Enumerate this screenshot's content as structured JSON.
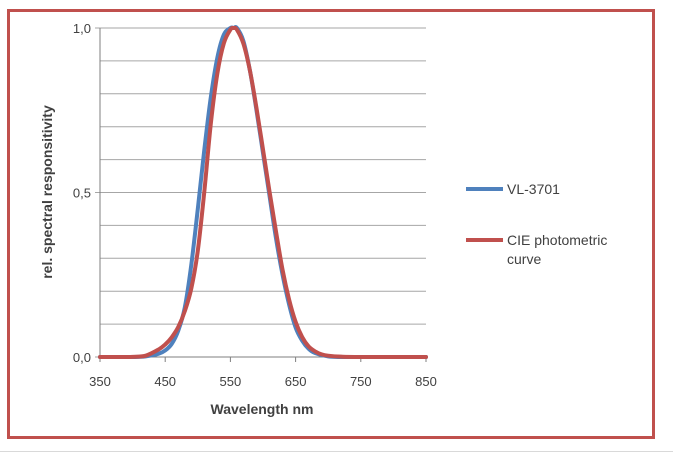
{
  "chart_data": {
    "type": "line",
    "title": "",
    "xlabel": "Wavelength nm",
    "ylabel": "rel. spectral responsitivity",
    "xlim": [
      350,
      850
    ],
    "ylim": [
      0,
      1
    ],
    "x_ticks": [
      350,
      450,
      550,
      650,
      750,
      850
    ],
    "x_tick_labels": [
      "350",
      "450",
      "550",
      "650",
      "750",
      "850"
    ],
    "y_ticks": [
      0,
      0.5,
      1
    ],
    "y_tick_labels": [
      "0,0",
      "0,5",
      "1,0"
    ],
    "y_gridlines": [
      0,
      0.1,
      0.2,
      0.3,
      0.4,
      0.5,
      0.6,
      0.7,
      0.8,
      0.9,
      1.0
    ],
    "grid": "horizontal",
    "legend_position": "right",
    "series": [
      {
        "name": "VL-3701",
        "color": "#4f81bd",
        "x": [
          350,
          380,
          400,
          420,
          440,
          450,
          460,
          470,
          480,
          490,
          500,
          510,
          520,
          530,
          540,
          550,
          555,
          560,
          570,
          580,
          590,
          600,
          610,
          620,
          630,
          640,
          650,
          660,
          670,
          680,
          700,
          720,
          750,
          850
        ],
        "y": [
          0,
          0,
          0,
          0.002,
          0.01,
          0.02,
          0.04,
          0.08,
          0.15,
          0.28,
          0.45,
          0.63,
          0.79,
          0.91,
          0.98,
          1.0,
          1.0,
          1.0,
          0.96,
          0.87,
          0.75,
          0.62,
          0.49,
          0.36,
          0.25,
          0.16,
          0.09,
          0.05,
          0.025,
          0.012,
          0.002,
          0,
          0,
          0
        ]
      },
      {
        "name": "CIE photometric curve",
        "color": "#c0504d",
        "x": [
          350,
          380,
          400,
          420,
          440,
          450,
          460,
          470,
          480,
          490,
          500,
          510,
          520,
          530,
          540,
          550,
          555,
          560,
          570,
          580,
          590,
          600,
          610,
          620,
          630,
          640,
          650,
          660,
          670,
          680,
          690,
          700,
          720,
          750,
          850
        ],
        "y": [
          0,
          0,
          0.0004,
          0.004,
          0.023,
          0.038,
          0.06,
          0.091,
          0.139,
          0.208,
          0.323,
          0.503,
          0.71,
          0.862,
          0.954,
          0.995,
          1.0,
          0.995,
          0.952,
          0.87,
          0.757,
          0.631,
          0.503,
          0.381,
          0.265,
          0.175,
          0.107,
          0.061,
          0.032,
          0.017,
          0.008,
          0.004,
          0.001,
          0,
          0
        ]
      }
    ]
  }
}
